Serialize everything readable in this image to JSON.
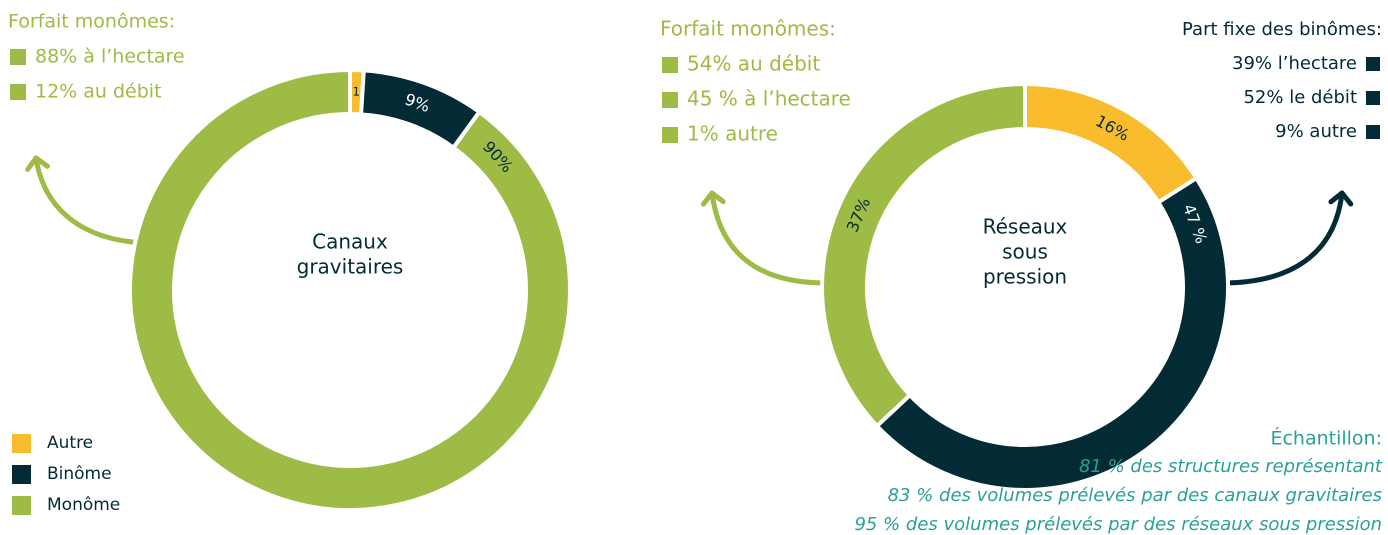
{
  "chart_data": [
    {
      "type": "pie",
      "center_label": [
        "Canaux",
        "gravitaires"
      ],
      "categories": [
        "Autre",
        "Binôme",
        "Monôme"
      ],
      "values": [
        1,
        9,
        90
      ],
      "value_labels": [
        "1",
        "9%",
        "90%"
      ],
      "colors": [
        "#f8bc2c",
        "#032b35",
        "#9dbb45"
      ],
      "notes": [
        {
          "heading": "Forfait monômes:",
          "items": [
            "88% à l’hectare",
            "12% au débit"
          ]
        }
      ]
    },
    {
      "type": "pie",
      "center_label": [
        "Réseaux",
        "sous",
        "pression"
      ],
      "categories": [
        "Autre",
        "Binôme",
        "Monôme"
      ],
      "values": [
        16,
        47,
        37
      ],
      "value_labels": [
        "16%",
        "47 %",
        "37%"
      ],
      "colors": [
        "#f8bc2c",
        "#032b35",
        "#9dbb45"
      ],
      "notes": [
        {
          "heading": "Forfait monômes:",
          "items": [
            "54% au débit",
            "45 % à l’hectare",
            "1% autre"
          ]
        },
        {
          "heading": "Part fixe des binômes:",
          "items": [
            "39% l’hectare",
            "52% le débit",
            "9% autre"
          ]
        }
      ]
    }
  ],
  "sample": {
    "heading": "Échantillon:",
    "lines": [
      "81 % des structures représentant",
      "83 % des volumes prélevés par des canaux gravitaires",
      "95 % des volumes prélevés par des réseaux sous pression"
    ]
  }
}
